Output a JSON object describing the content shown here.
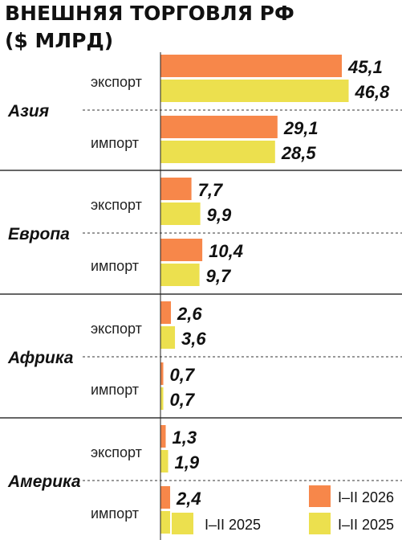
{
  "title_line1": "ВНЕШНЯЯ ТОРГОВЛЯ РФ",
  "title_line2": "($ МЛРД)",
  "colors": {
    "series_2026": "#f7874a",
    "series_2025": "#ece04e",
    "axis": "#222222",
    "separator": "#333333"
  },
  "chart_data": {
    "type": "bar",
    "orientation": "horizontal",
    "title": "ВНЕШНЯЯ ТОРГОВЛЯ РФ ($ МЛРД)",
    "xlim": [
      0,
      50
    ],
    "legend_placement": "bottom-right",
    "series": [
      {
        "name": "I–II 2026",
        "color": "#f7874a"
      },
      {
        "name": "I–II 2025",
        "color": "#ece04e"
      }
    ],
    "groups": [
      {
        "region": "Азия",
        "flows": [
          {
            "label": "экспорт",
            "values": [
              "45,1",
              "46,8"
            ]
          },
          {
            "label": "импорт",
            "values": [
              "29,1",
              "28,5"
            ]
          }
        ]
      },
      {
        "region": "Европа",
        "flows": [
          {
            "label": "экспорт",
            "values": [
              "7,7",
              "9,9"
            ]
          },
          {
            "label": "импорт",
            "values": [
              "10,4",
              "9,7"
            ]
          }
        ]
      },
      {
        "region": "Африка",
        "flows": [
          {
            "label": "экспорт",
            "values": [
              "2,6",
              "3,6"
            ]
          },
          {
            "label": "импорт",
            "values": [
              "0,7",
              "0,7"
            ]
          }
        ]
      },
      {
        "region": "Америка",
        "flows": [
          {
            "label": "экспорт",
            "values": [
              "1,3",
              "1,9"
            ]
          },
          {
            "label": "импорт",
            "values": [
              "2,4",
              "2,4"
            ]
          }
        ]
      }
    ]
  }
}
